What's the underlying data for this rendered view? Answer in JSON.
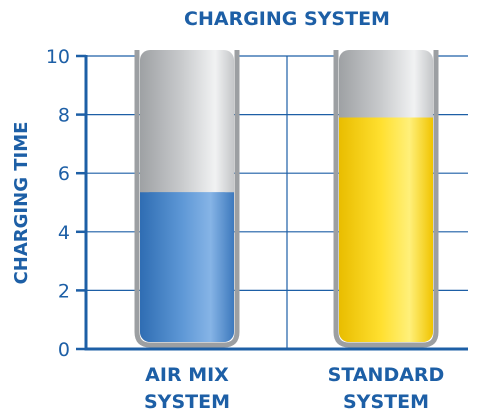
{
  "chart_data": {
    "type": "bar",
    "title": "CHARGING SYSTEM",
    "ylabel": "CHARGING TIME",
    "xlabel": "",
    "ylim": [
      0,
      10
    ],
    "yticks": [
      0,
      2,
      4,
      6,
      8,
      10
    ],
    "categories": [
      [
        "AIR MIX",
        "SYSTEM"
      ],
      [
        "STANDARD",
        "SYSTEM"
      ]
    ],
    "values": [
      5.35,
      7.9
    ],
    "grid": true,
    "legend": "none",
    "colors": {
      "axis": "#1d5fa6",
      "grid": "#1d5fa6",
      "text": "#1d5fa6",
      "bar_fill": [
        "#4a86c8",
        "#f7d000"
      ],
      "tube_empty": "#bdbfc1",
      "tube_outline": "#9c9fa2"
    }
  }
}
